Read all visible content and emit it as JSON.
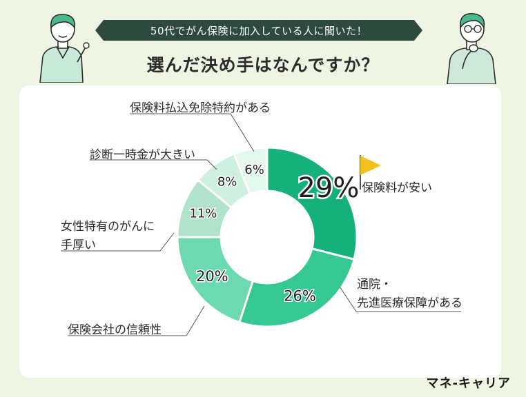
{
  "header": {
    "banner": "50代でがん保険に加入している人に聞いた！",
    "title": "選んだ決め手はなんですか？"
  },
  "brand": "マネ-キャリア",
  "colors": {
    "background": "#eef5e3",
    "banner": "#2e4a3f",
    "flag": "#f5c21b"
  },
  "icons": [
    "person-pointing-icon",
    "person-thinking-icon",
    "flag-icon"
  ],
  "chart_data": {
    "type": "pie",
    "donut": true,
    "title": "選んだ決め手はなんですか？",
    "labels": [
      "保険料が安い",
      "通院・先進医療保障がある",
      "保険会社の信頼性",
      "女性特有のがんに手厚い",
      "診断一時金が大きい",
      "保険料払込免除特約がある"
    ],
    "values": [
      29,
      26,
      20,
      11,
      8,
      6
    ],
    "value_labels": [
      "29%",
      "26%",
      "20%",
      "11%",
      "8%",
      "6%"
    ],
    "colors": [
      "#16b07a",
      "#35c893",
      "#6cd9b1",
      "#b1e3cc",
      "#cdf1de",
      "#e4f8ee"
    ]
  },
  "labels": {
    "l0": "保険料が安い",
    "l1a": "通院・",
    "l1b": "先進医療保障がある",
    "l2": "保険会社の信頼性",
    "l3a": "女性特有のがんに",
    "l3b": "手厚い",
    "l4": "診断一時金が大きい",
    "l5": "保険料払込免除特約がある"
  }
}
